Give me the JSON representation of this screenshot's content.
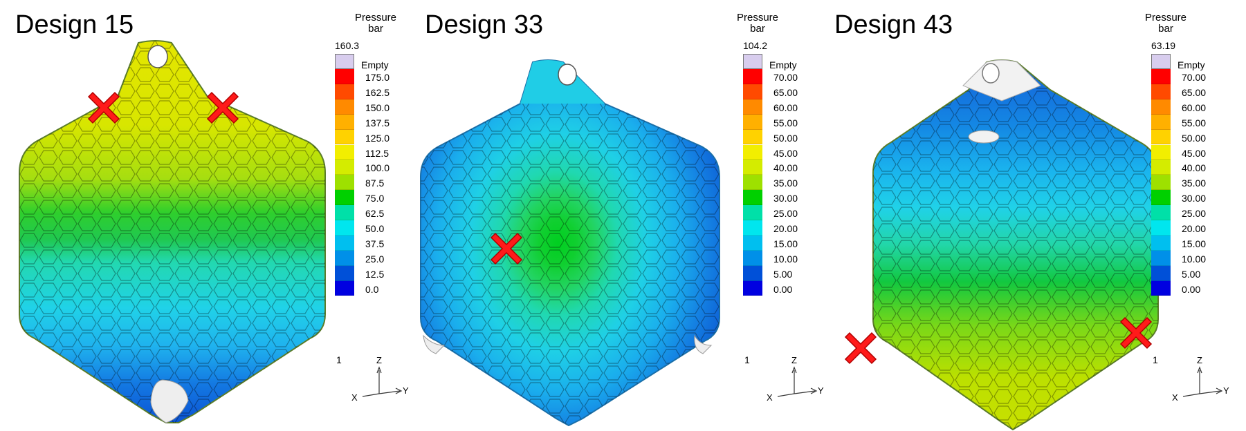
{
  "panels": [
    {
      "title": "Design 15",
      "legend": {
        "header_line1": "Pressure",
        "header_line2": "bar",
        "max": "160.3",
        "empty_label": "Empty",
        "ticks": [
          "175.0",
          "162.5",
          "150.0",
          "137.5",
          "125.0",
          "112.5",
          "100.0",
          "87.5",
          "75.0",
          "62.5",
          "50.0",
          "37.5",
          "25.0",
          "12.5",
          "0.0"
        ],
        "min": "1"
      },
      "axes": {
        "z": "Z",
        "x": "X",
        "y": "Y"
      },
      "injection_points": 2
    },
    {
      "title": "Design 33",
      "legend": {
        "header_line1": "Pressure",
        "header_line2": "bar",
        "max": "104.2",
        "empty_label": "Empty",
        "ticks": [
          "70.00",
          "65.00",
          "60.00",
          "55.00",
          "50.00",
          "45.00",
          "40.00",
          "35.00",
          "30.00",
          "25.00",
          "20.00",
          "15.00",
          "10.00",
          "5.00",
          "0.00"
        ],
        "min": "1"
      },
      "axes": {
        "z": "Z",
        "x": "X",
        "y": "Y"
      },
      "injection_points": 1
    },
    {
      "title": "Design 43",
      "legend": {
        "header_line1": "Pressure",
        "header_line2": "bar",
        "max": "63.19",
        "empty_label": "Empty",
        "ticks": [
          "70.00",
          "65.00",
          "60.00",
          "55.00",
          "50.00",
          "45.00",
          "40.00",
          "35.00",
          "30.00",
          "25.00",
          "20.00",
          "15.00",
          "10.00",
          "5.00",
          "0.00"
        ],
        "min": "1"
      },
      "axes": {
        "z": "Z",
        "x": "X",
        "y": "Y"
      },
      "injection_points": 2
    }
  ],
  "colors": {
    "scale": [
      "#ff0000",
      "#ff4a00",
      "#ff8a00",
      "#ffb000",
      "#ffd200",
      "#f2ee00",
      "#d4ec00",
      "#9ee000",
      "#00d000",
      "#00e0a8",
      "#00e6ee",
      "#00bfef",
      "#0090e8",
      "#0050d8",
      "#0000e0"
    ],
    "empty": "#d8cdee",
    "marker": "#ff1a1a"
  }
}
